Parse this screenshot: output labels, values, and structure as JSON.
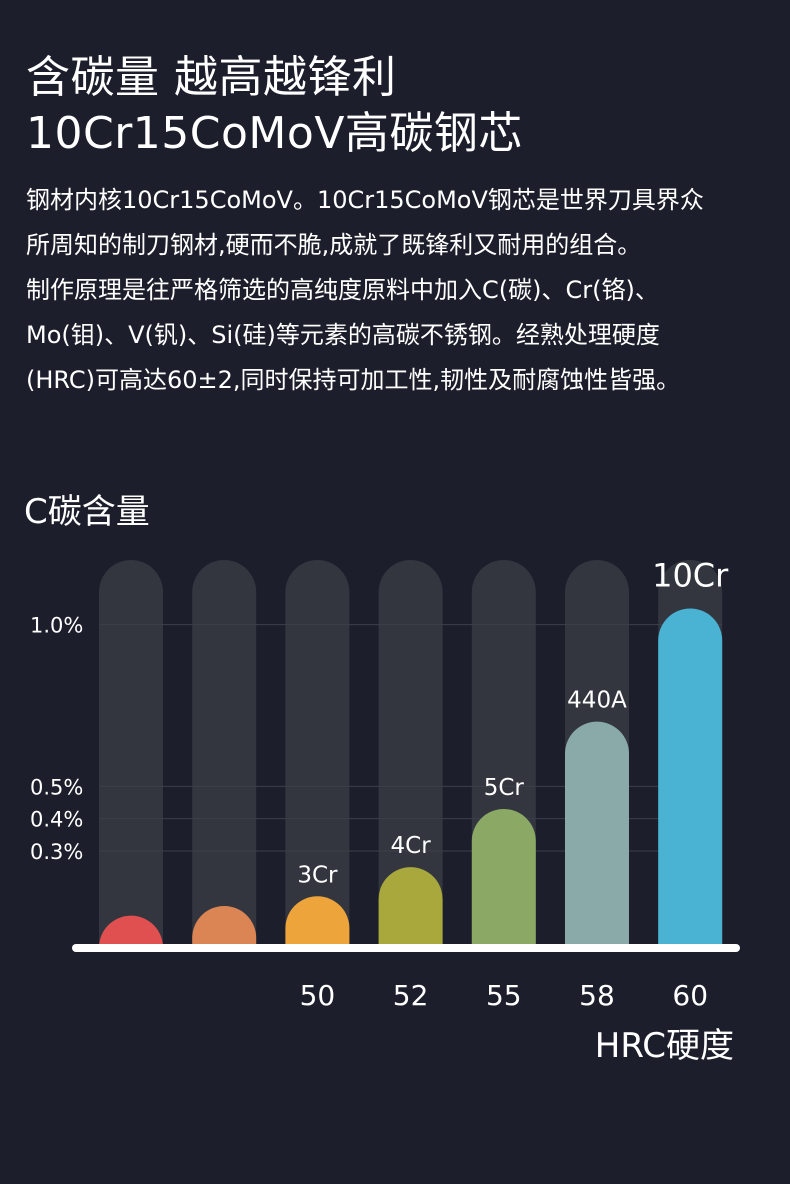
{
  "title": {
    "line1": "含碳量 越高越锋利",
    "line2": "10Cr15CoMoV高碳钢芯"
  },
  "description": [
    "钢材内核10Cr15CoMoV。10Cr15CoMoV钢芯是世界刀具界众",
    "所周知的制刀钢材,硬而不脆,成就了既锋利又耐用的组合。",
    "制作原理是往严格筛选的高纯度原料中加入C(碳)、Cr(铬)、",
    "Mo(钼)、V(钒)、Si(硅)等元素的高碳不锈钢。经熟处理硬度",
    "(HRC)可高达60±2,同时保持可加工性,韧性及耐腐蚀性皆强。"
  ],
  "chart_data": {
    "type": "bar",
    "title": "C碳含量",
    "xlabel": "HRC硬度",
    "ylabel": "",
    "y_tick_labels": [
      "1.0%",
      "0.5%",
      "0.4%",
      "0.3%"
    ],
    "y_ticks": [
      1.0,
      0.5,
      0.4,
      0.3
    ],
    "ylim": [
      0,
      1.2
    ],
    "categories": [
      "",
      "",
      "50",
      "52",
      "55",
      "58",
      "60"
    ],
    "bar_labels": [
      "",
      "",
      "3Cr",
      "4Cr",
      "5Cr",
      "440A",
      "10Cr"
    ],
    "values": [
      0.1,
      0.13,
      0.16,
      0.25,
      0.43,
      0.7,
      1.05
    ],
    "colors": [
      "#e05050",
      "#dc8554",
      "#eda43b",
      "#a8a83c",
      "#8ba965",
      "#8aaaaa",
      "#4ab3d4"
    ],
    "track_color": "#33363f",
    "grid": true
  }
}
